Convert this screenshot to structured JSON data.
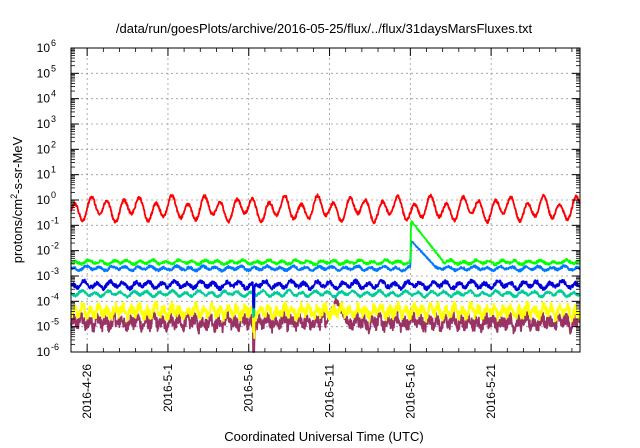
{
  "chart_data": {
    "type": "line",
    "title": "/data/run/goesPlots/archive/2016-05-25/flux/../flux/31daysMarsFluxes.txt",
    "xlabel": "Coordinated Universal Time (UTC)",
    "ylabel_parts": [
      "protons/cm",
      "2",
      "-s-sr-MeV"
    ],
    "yscale": "log",
    "ylim_exponents": [
      -6,
      6
    ],
    "y_ticks": [
      {
        "base": "10",
        "exp": "-6"
      },
      {
        "base": "10",
        "exp": "-5"
      },
      {
        "base": "10",
        "exp": "-4"
      },
      {
        "base": "10",
        "exp": "-3"
      },
      {
        "base": "10",
        "exp": "-2"
      },
      {
        "base": "10",
        "exp": "-1"
      },
      {
        "base": "10",
        "exp": "0"
      },
      {
        "base": "10",
        "exp": "1"
      },
      {
        "base": "10",
        "exp": "2"
      },
      {
        "base": "10",
        "exp": "3"
      },
      {
        "base": "10",
        "exp": "4"
      },
      {
        "base": "10",
        "exp": "5"
      },
      {
        "base": "10",
        "exp": "6"
      }
    ],
    "x_ticks": [
      "2016-4-26",
      "2016-5-1",
      "2016-5-6",
      "2016-5-11",
      "2016-5-16",
      "2016-5-21"
    ],
    "x_tick_days": [
      0,
      5,
      10,
      15,
      20,
      25
    ],
    "x_range_days": [
      -1,
      30.5
    ],
    "grid": true,
    "series": [
      {
        "color": "#ff0000",
        "base": 0.45,
        "amp": 0.35,
        "period": 1.0,
        "noise": 0.06,
        "events": []
      },
      {
        "color": "#00ff00",
        "base": 0.0035,
        "amp": 0.06,
        "period": 0.8,
        "noise": 0.05,
        "events": [
          {
            "start": 20.0,
            "peak": 20.05,
            "peak_value": 0.15,
            "end": 22.0,
            "end_value": 0.004
          }
        ]
      },
      {
        "color": "#0077ff",
        "base": 0.002,
        "amp": 0.06,
        "period": 0.8,
        "noise": 0.05,
        "events": [
          {
            "start": 20.0,
            "peak": 20.05,
            "peak_value": 0.025,
            "end": 21.5,
            "end_value": 0.0025
          }
        ]
      },
      {
        "color": "#0000dd",
        "base": 0.00045,
        "amp": 0.1,
        "period": 0.8,
        "noise": 0.08,
        "events": []
      },
      {
        "color": "#00cc99",
        "base": 0.0002,
        "amp": 0.08,
        "period": 0.8,
        "noise": 0.05,
        "events": []
      },
      {
        "color": "#ffff00",
        "base": 4e-05,
        "amp": 0.15,
        "period": 0.5,
        "noise": 0.2,
        "events": []
      },
      {
        "color": "#993366",
        "base": 1.5e-05,
        "amp": 0.15,
        "period": 0.5,
        "noise": 0.25,
        "events": [
          {
            "start": 14.8,
            "peak": 15.4,
            "peak_value": 0.00012,
            "end": 16.0,
            "end_value": 2e-05
          }
        ]
      }
    ],
    "dip_day": 10.3
  }
}
